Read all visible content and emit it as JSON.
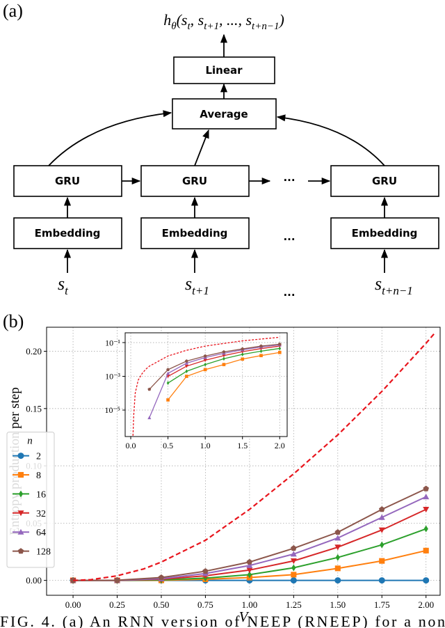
{
  "panel_a": {
    "label": "(a)",
    "output": [
      {
        "t": "h"
      },
      {
        "sub": "θ"
      },
      {
        "t": "(s"
      },
      {
        "sub": "t"
      },
      {
        "t": ", s"
      },
      {
        "sub": "t+1"
      },
      {
        "t": ", ..., s"
      },
      {
        "sub": "t+n−1"
      },
      {
        "t": ")"
      }
    ],
    "linear": "Linear",
    "average": "Average",
    "gru": [
      "GRU",
      "GRU",
      "GRU"
    ],
    "gru_gap": "···",
    "embedding": [
      "Embedding",
      "Embedding",
      "Embedding"
    ],
    "embedding_gap": "...",
    "inputs": [
      {
        "s": "s",
        "sub": "t"
      },
      {
        "s": "s",
        "sub": "t+1"
      },
      {
        "s": "s",
        "sub": "t+n−1"
      }
    ],
    "input_gap": "..."
  },
  "panel_b_label": "(b)",
  "chart_data": [
    {
      "type": "line",
      "xlabel": "V",
      "ylabel": "Entropy production per step",
      "grid": true,
      "xlim": [
        -0.15,
        2.08
      ],
      "ylim": [
        -0.013,
        0.221
      ],
      "xticks": [
        {
          "value": 0,
          "label": "0.00"
        },
        {
          "value": 0.25,
          "label": "0.25"
        },
        {
          "value": 0.5,
          "label": "0.50"
        },
        {
          "value": 0.75,
          "label": "0.75"
        },
        {
          "value": 1,
          "label": "1.00"
        },
        {
          "value": 1.25,
          "label": "1.25"
        },
        {
          "value": 1.5,
          "label": "1.50"
        },
        {
          "value": 1.75,
          "label": "1.75"
        },
        {
          "value": 2,
          "label": "2.00"
        }
      ],
      "yticks": [
        {
          "value": 0,
          "label": "0.00"
        },
        {
          "value": 0.05,
          "label": "0.05"
        },
        {
          "value": 0.1,
          "label": "0.10"
        },
        {
          "value": 0.15,
          "label": "0.15"
        },
        {
          "value": 0.2,
          "label": "0.20"
        }
      ],
      "legend_title": "n",
      "legend_loc": "lower left",
      "x": [
        0,
        0.25,
        0.5,
        0.75,
        1,
        1.25,
        1.5,
        1.75,
        2
      ],
      "series": [
        {
          "name": "2",
          "color": "#1f77b4",
          "marker": "o",
          "values": [
            0,
            0,
            0,
            0,
            0,
            0,
            0,
            0,
            0
          ]
        },
        {
          "name": "8",
          "color": "#ff7f0e",
          "marker": "s",
          "values": [
            0,
            0,
            4e-05,
            0.001,
            0.0025,
            0.005,
            0.0105,
            0.017,
            0.026
          ]
        },
        {
          "name": "16",
          "color": "#2ca02c",
          "marker": "d",
          "values": [
            0,
            0,
            0.0004,
            0.002,
            0.005,
            0.011,
            0.02,
            0.031,
            0.045
          ]
        },
        {
          "name": "32",
          "color": "#d62728",
          "marker": "v",
          "values": [
            0,
            0,
            0.001,
            0.004,
            0.009,
            0.017,
            0.029,
            0.044,
            0.062
          ]
        },
        {
          "name": "64",
          "color": "#9467bd",
          "marker": "^",
          "values": [
            0,
            3.5e-06,
            0.0015,
            0.006,
            0.013,
            0.023,
            0.037,
            0.055,
            0.073
          ]
        },
        {
          "name": "128",
          "color": "#8c564b",
          "marker": "p",
          "values": [
            0,
            0.00017,
            0.0025,
            0.008,
            0.016,
            0.028,
            0.042,
            0.062,
            0.08
          ]
        }
      ],
      "reference": {
        "color": "#e8141c",
        "style": "dashed",
        "x": [
          0,
          0.1,
          0.25,
          0.4,
          0.5,
          0.75,
          1,
          1.25,
          1.5,
          1.75,
          2,
          2.05
        ],
        "values": [
          0,
          0.0006,
          0.004,
          0.01,
          0.016,
          0.035,
          0.062,
          0.093,
          0.127,
          0.165,
          0.207,
          0.216
        ]
      }
    },
    {
      "type": "line",
      "inset": true,
      "yscale": "log",
      "grid": true,
      "xlim": [
        -0.075,
        2.1
      ],
      "ylim": [
        2.7e-07,
        0.38
      ],
      "xticks": [
        {
          "value": 0,
          "label": "0.0"
        },
        {
          "value": 0.5,
          "label": "0.5"
        },
        {
          "value": 1,
          "label": "1.0"
        },
        {
          "value": 1.5,
          "label": "1.5"
        },
        {
          "value": 2,
          "label": "2.0"
        }
      ],
      "yticks": [
        {
          "value": 0.1,
          "label": "10⁻¹"
        },
        {
          "value": 0.001,
          "label": "10⁻³"
        },
        {
          "value": 1e-05,
          "label": "10⁻⁵"
        }
      ],
      "x": [
        0.25,
        0.5,
        0.75,
        1,
        1.25,
        1.5,
        1.75,
        2
      ],
      "series": [
        {
          "color": "#ff7f0e",
          "marker": "s",
          "values": [
            null,
            4e-05,
            0.001,
            0.0025,
            0.005,
            0.0105,
            0.017,
            0.026
          ]
        },
        {
          "color": "#2ca02c",
          "marker": "d",
          "values": [
            null,
            0.0004,
            0.002,
            0.005,
            0.011,
            0.02,
            0.031,
            0.045
          ]
        },
        {
          "color": "#d62728",
          "marker": "v",
          "values": [
            null,
            0.001,
            0.004,
            0.009,
            0.017,
            0.029,
            0.044,
            0.062
          ]
        },
        {
          "color": "#9467bd",
          "marker": "^",
          "values": [
            3.5e-06,
            0.0015,
            0.006,
            0.013,
            0.023,
            0.037,
            0.055,
            0.073
          ]
        },
        {
          "color": "#8c564b",
          "marker": "p",
          "values": [
            0.00017,
            0.0025,
            0.008,
            0.016,
            0.028,
            0.042,
            0.062,
            0.08
          ]
        }
      ],
      "reference": {
        "color": "#e8141c",
        "style": "dashed",
        "x": [
          0.03,
          0.04,
          0.06,
          0.1,
          0.15,
          0.2,
          0.25,
          0.5,
          0.75,
          1,
          1.5,
          2
        ],
        "values": [
          3e-07,
          5e-06,
          0.0001,
          0.0006,
          0.0014,
          0.0026,
          0.004,
          0.016,
          0.035,
          0.062,
          0.127,
          0.207
        ]
      }
    }
  ],
  "caption": "FIG. 4. (a) An RNN version of NEEP (RNEEP) for a non"
}
